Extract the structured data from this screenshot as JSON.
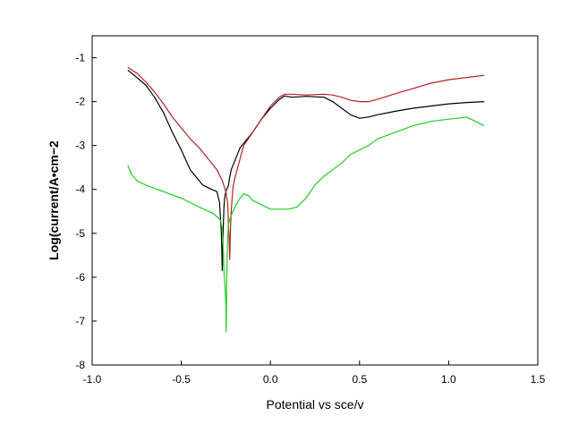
{
  "chart_data": {
    "type": "line",
    "title": "",
    "xlabel": "Potential vs sce/v",
    "ylabel": "Log(current/A•cm−2",
    "xlim": [
      -1.0,
      1.5
    ],
    "ylim": [
      -8,
      -0.5
    ],
    "xticks": [
      -1.0,
      -0.5,
      0.0,
      0.5,
      1.0,
      1.5
    ],
    "xtick_labels": [
      "-1.0",
      "-0.5",
      "0.0",
      "0.5",
      "1.0",
      "1.5"
    ],
    "yticks": [
      -8,
      -7,
      -6,
      -5,
      -4,
      -3,
      -2,
      -1
    ],
    "ytick_labels": [
      "-8",
      "-7",
      "-6",
      "-5",
      "-4",
      "-3",
      "-2",
      "-1"
    ],
    "grid": false,
    "legend": "none",
    "series": [
      {
        "color": "#000000",
        "x": [
          -0.8,
          -0.75,
          -0.7,
          -0.65,
          -0.6,
          -0.55,
          -0.5,
          -0.45,
          -0.42,
          -0.38,
          -0.33,
          -0.3,
          -0.285,
          -0.275,
          -0.27,
          -0.265,
          -0.26,
          -0.255,
          -0.25,
          -0.245,
          -0.24,
          -0.235,
          -0.23,
          -0.22,
          -0.2,
          -0.17,
          -0.15,
          -0.1,
          -0.05,
          0.0,
          0.05,
          0.08,
          0.12,
          0.2,
          0.3,
          0.35,
          0.4,
          0.45,
          0.5,
          0.55,
          0.6,
          0.7,
          0.8,
          0.9,
          1.0,
          1.1,
          1.2
        ],
        "y": [
          -1.28,
          -1.45,
          -1.62,
          -1.9,
          -2.25,
          -2.7,
          -3.1,
          -3.55,
          -3.7,
          -3.9,
          -4.0,
          -4.05,
          -4.3,
          -5.0,
          -5.85,
          -4.9,
          -4.35,
          -4.15,
          -4.05,
          -4.0,
          -3.95,
          -3.9,
          -3.75,
          -3.55,
          -3.35,
          -3.05,
          -2.95,
          -2.7,
          -2.4,
          -2.15,
          -1.95,
          -1.87,
          -1.9,
          -1.88,
          -1.9,
          -2.0,
          -2.15,
          -2.3,
          -2.38,
          -2.35,
          -2.3,
          -2.22,
          -2.15,
          -2.1,
          -2.05,
          -2.02,
          -2.0
        ]
      },
      {
        "color": "#b22222",
        "x": [
          -0.8,
          -0.75,
          -0.7,
          -0.65,
          -0.6,
          -0.55,
          -0.5,
          -0.45,
          -0.4,
          -0.35,
          -0.3,
          -0.27,
          -0.25,
          -0.24,
          -0.235,
          -0.232,
          -0.228,
          -0.225,
          -0.222,
          -0.22,
          -0.215,
          -0.21,
          -0.2,
          -0.17,
          -0.15,
          -0.1,
          -0.05,
          0.0,
          0.05,
          0.08,
          0.12,
          0.2,
          0.3,
          0.35,
          0.4,
          0.45,
          0.5,
          0.55,
          0.6,
          0.7,
          0.8,
          0.9,
          1.0,
          1.1,
          1.2
        ],
        "y": [
          -1.22,
          -1.35,
          -1.55,
          -1.78,
          -2.05,
          -2.35,
          -2.6,
          -2.85,
          -3.05,
          -3.3,
          -3.55,
          -3.8,
          -4.05,
          -4.3,
          -4.8,
          -5.1,
          -5.6,
          -5.0,
          -4.7,
          -4.5,
          -4.2,
          -3.95,
          -3.75,
          -3.3,
          -3.0,
          -2.7,
          -2.4,
          -2.1,
          -1.9,
          -1.83,
          -1.83,
          -1.85,
          -1.83,
          -1.85,
          -1.9,
          -1.97,
          -2.0,
          -2.0,
          -1.95,
          -1.82,
          -1.7,
          -1.58,
          -1.5,
          -1.45,
          -1.4
        ]
      },
      {
        "color": "#22cc22",
        "x": [
          -0.8,
          -0.78,
          -0.75,
          -0.7,
          -0.6,
          -0.5,
          -0.4,
          -0.32,
          -0.28,
          -0.27,
          -0.265,
          -0.26,
          -0.255,
          -0.25,
          -0.248,
          -0.245,
          -0.242,
          -0.24,
          -0.235,
          -0.23,
          -0.22,
          -0.2,
          -0.17,
          -0.15,
          -0.12,
          -0.1,
          -0.05,
          0.0,
          0.05,
          0.1,
          0.15,
          0.2,
          0.25,
          0.3,
          0.35,
          0.4,
          0.45,
          0.5,
          0.55,
          0.6,
          0.7,
          0.8,
          0.9,
          1.0,
          1.05,
          1.1,
          1.15,
          1.2
        ],
        "y": [
          -3.45,
          -3.65,
          -3.8,
          -3.9,
          -4.05,
          -4.2,
          -4.4,
          -4.55,
          -4.7,
          -4.9,
          -5.3,
          -5.9,
          -6.2,
          -6.6,
          -7.25,
          -6.0,
          -5.5,
          -5.1,
          -4.8,
          -4.7,
          -4.6,
          -4.4,
          -4.2,
          -4.1,
          -4.15,
          -4.25,
          -4.35,
          -4.45,
          -4.45,
          -4.45,
          -4.4,
          -4.2,
          -3.9,
          -3.7,
          -3.55,
          -3.4,
          -3.2,
          -3.1,
          -3.0,
          -2.85,
          -2.7,
          -2.55,
          -2.45,
          -2.4,
          -2.38,
          -2.35,
          -2.45,
          -2.55
        ]
      }
    ]
  }
}
